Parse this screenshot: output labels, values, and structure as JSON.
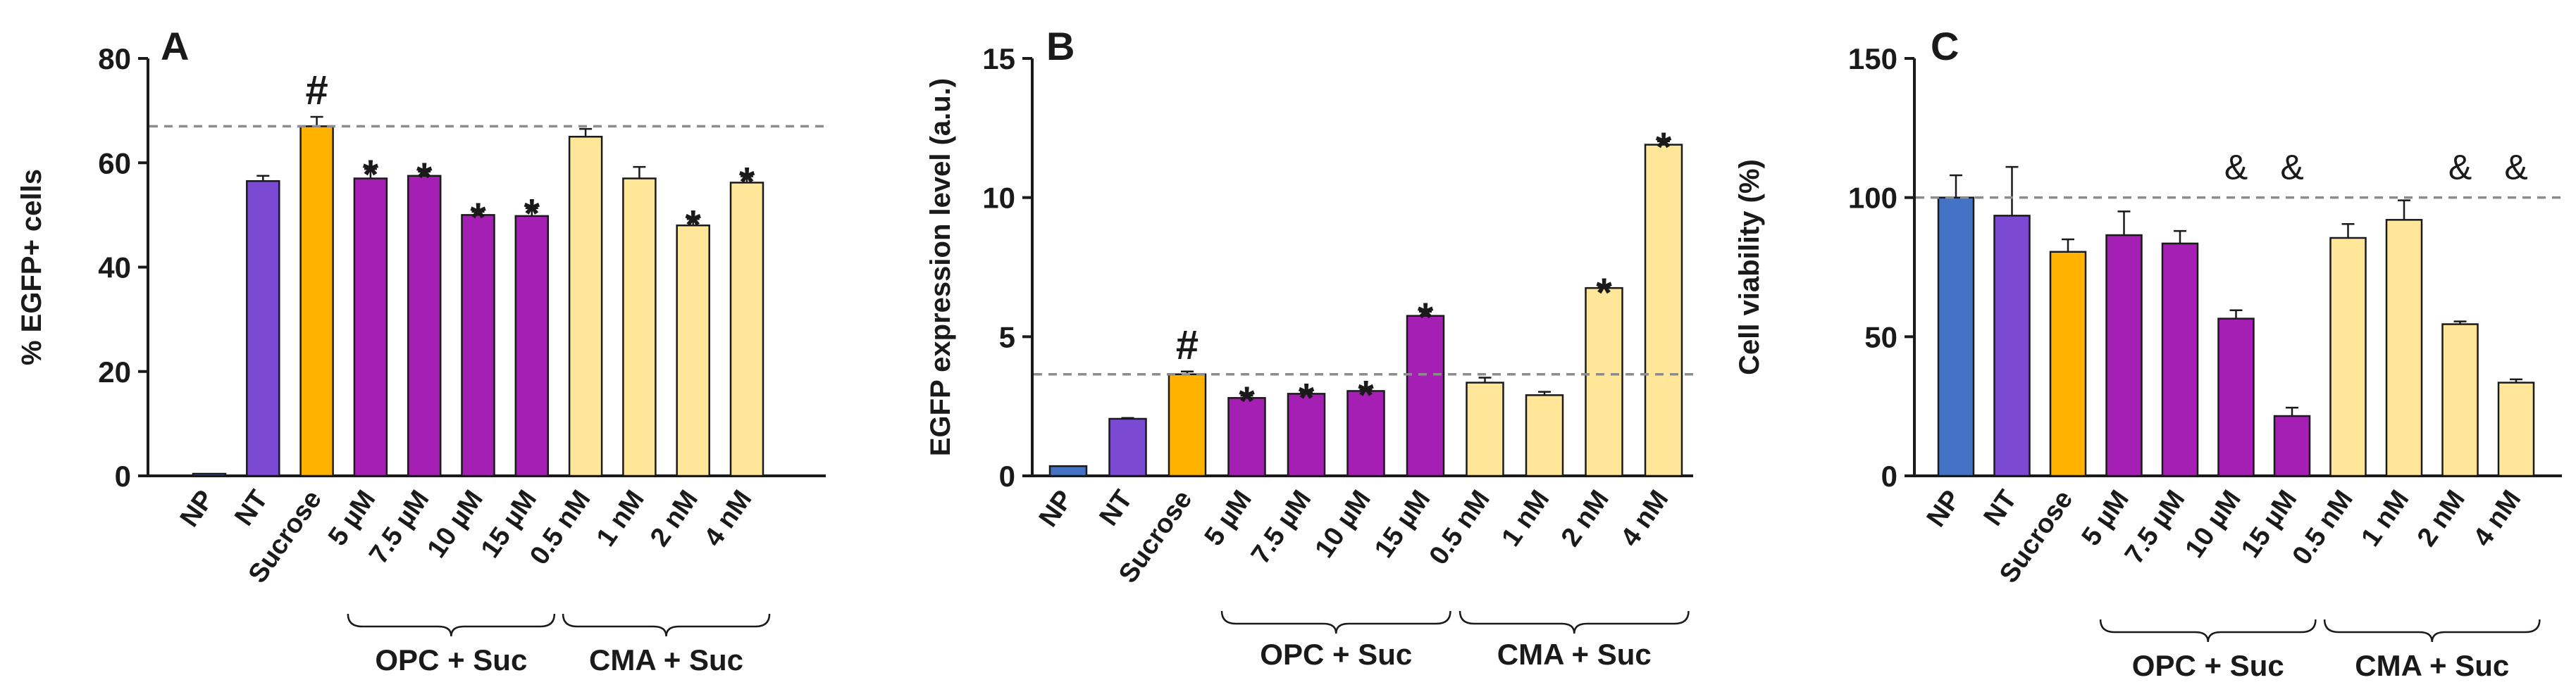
{
  "colors": {
    "NP": "#4472C4",
    "NT": "#7A4BD2",
    "Sucrose": "#FFB300",
    "OPC": "#A61FB5",
    "CMA": "#FFE699",
    "axis": "#1a1a1a",
    "reference_line": "#8c8c8c"
  },
  "chart_data": [
    {
      "type": "bar",
      "panel": "A",
      "title": "",
      "ylabel": "% EGFP+ cells",
      "xlabel": "",
      "ylim": [
        0,
        80
      ],
      "yticks": [
        "0",
        "20",
        "40",
        "60",
        "80"
      ],
      "yticks_values": [
        0,
        20,
        40,
        60,
        80
      ],
      "categories": [
        "NP",
        "NT",
        "Sucrose",
        "5 µM",
        "7.5 µM",
        "10 µM",
        "15 µM",
        "0.5 nM",
        "1 nM",
        "2 nM",
        "4 nM"
      ],
      "values": [
        0.2,
        56.5,
        67.0,
        57.0,
        57.5,
        50.0,
        49.8,
        65.0,
        57.0,
        48.0,
        56.2
      ],
      "errors": [
        0,
        1.0,
        1.8,
        1.8,
        0.8,
        0.6,
        1.5,
        1.5,
        2.2,
        1.2,
        1.2
      ],
      "color_keys": [
        "NP",
        "NT",
        "Sucrose",
        "OPC",
        "OPC",
        "OPC",
        "OPC",
        "CMA",
        "CMA",
        "CMA",
        "CMA"
      ],
      "markers": [
        "",
        "",
        "#",
        "*",
        "*",
        "*",
        "*",
        "",
        "",
        "*",
        "*"
      ],
      "reference_line": 67.0,
      "groups": [
        {
          "label": "OPC + Suc",
          "from": 3,
          "to": 6
        },
        {
          "label": "CMA + Suc",
          "from": 7,
          "to": 10
        }
      ]
    },
    {
      "type": "bar",
      "panel": "B",
      "title": "",
      "ylabel": "EGFP expression level (a.u.)",
      "xlabel": "",
      "ylim": [
        0,
        15
      ],
      "yticks": [
        "0",
        "5",
        "10",
        "15"
      ],
      "yticks_values": [
        0,
        5,
        10,
        15
      ],
      "categories": [
        "NP",
        "NT",
        "Sucrose",
        "5 µM",
        "7.5 µM",
        "10 µM",
        "15 µM",
        "0.5 nM",
        "1 nM",
        "2 nM",
        "4 nM"
      ],
      "values": [
        0.35,
        2.05,
        3.65,
        2.8,
        2.95,
        3.05,
        5.75,
        3.35,
        2.9,
        6.75,
        11.9
      ],
      "errors": [
        0,
        0.03,
        0.1,
        0.08,
        0.05,
        0.05,
        0.15,
        0.18,
        0.12,
        0.03,
        0.12
      ],
      "color_keys": [
        "NP",
        "NT",
        "Sucrose",
        "OPC",
        "OPC",
        "OPC",
        "OPC",
        "CMA",
        "CMA",
        "CMA",
        "CMA"
      ],
      "markers": [
        "",
        "",
        "#",
        "*",
        "*",
        "*",
        "*",
        "",
        "",
        "*",
        "*"
      ],
      "reference_line": 3.65,
      "groups": [
        {
          "label": "OPC + Suc",
          "from": 3,
          "to": 6
        },
        {
          "label": "CMA + Suc",
          "from": 7,
          "to": 10
        }
      ]
    },
    {
      "type": "bar",
      "panel": "C",
      "title": "",
      "ylabel": "Cell viability (%)",
      "xlabel": "",
      "ylim": [
        0,
        150
      ],
      "yticks": [
        "0",
        "50",
        "100",
        "150"
      ],
      "yticks_values": [
        0,
        50,
        100,
        150
      ],
      "categories": [
        "NP",
        "NT",
        "Sucrose",
        "5 µM",
        "7.5 µM",
        "10 µM",
        "15 µM",
        "0.5 nM",
        "1 nM",
        "2 nM",
        "4 nM"
      ],
      "values": [
        100,
        93.5,
        80.5,
        86.5,
        83.5,
        56.5,
        21.5,
        85.5,
        92.0,
        54.5,
        33.5
      ],
      "errors": [
        8,
        17.5,
        4.5,
        8.5,
        4.5,
        3,
        3,
        5,
        7,
        1,
        1.2
      ],
      "color_keys": [
        "NP",
        "NT",
        "Sucrose",
        "OPC",
        "OPC",
        "OPC",
        "OPC",
        "CMA",
        "CMA",
        "CMA",
        "CMA"
      ],
      "markers": [
        "",
        "",
        "",
        "",
        "",
        "&",
        "&",
        "",
        "",
        "&",
        "&"
      ],
      "reference_line": 100,
      "groups": [
        {
          "label": "OPC + Suc",
          "from": 3,
          "to": 6
        },
        {
          "label": "CMA + Suc",
          "from": 7,
          "to": 10
        }
      ]
    }
  ]
}
